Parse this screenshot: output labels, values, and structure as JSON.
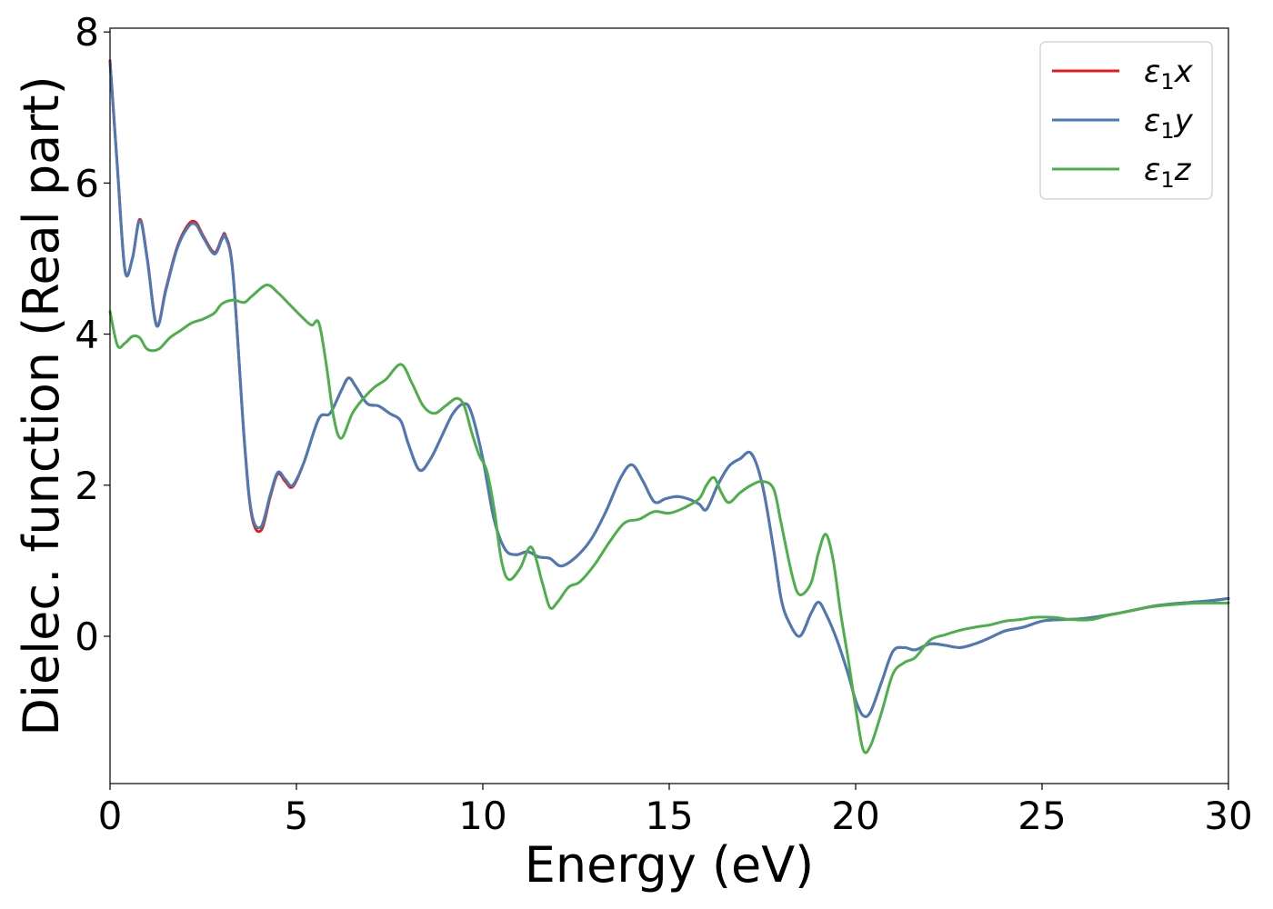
{
  "chart_data": {
    "type": "line",
    "xlabel": "Energy (eV)",
    "ylabel": "Dielec. function (Real part)",
    "xlim": [
      0,
      30
    ],
    "ylim": [
      -1.95,
      8.05
    ],
    "xticks": [
      0,
      5,
      10,
      15,
      20,
      25,
      30
    ],
    "xtick_labels": [
      "0",
      "5",
      "10",
      "15",
      "20",
      "25",
      "30"
    ],
    "yticks": [
      0,
      2,
      4,
      6,
      8
    ],
    "ytick_labels": [
      "0",
      "2",
      "4",
      "6",
      "8"
    ],
    "grid": false,
    "legend_position": "top-right",
    "series": [
      {
        "name": "ε1x",
        "legend_base": "ε",
        "legend_sub": "1",
        "legend_suffix": "x",
        "color": "#e41a1c",
        "x": [
          0,
          0.2,
          0.4,
          0.6,
          0.8,
          1.0,
          1.25,
          1.5,
          1.8,
          2.1,
          2.3,
          2.5,
          2.8,
          3.0,
          3.1,
          3.3,
          3.6,
          3.8,
          4.05,
          4.3,
          4.5,
          4.7,
          4.9,
          5.2,
          5.6,
          5.9,
          6.2,
          6.4,
          6.6,
          6.9,
          7.2,
          7.5,
          7.8,
          8.0,
          8.3,
          8.6,
          8.9,
          9.2,
          9.5,
          9.7,
          10.0,
          10.3,
          10.6,
          10.9,
          11.2,
          11.5,
          11.8,
          12.1,
          12.5,
          12.9,
          13.3,
          13.7,
          14.0,
          14.3,
          14.6,
          14.9,
          15.2,
          15.5,
          15.8,
          16.0,
          16.3,
          16.6,
          16.9,
          17.2,
          17.5,
          17.8,
          18.0,
          18.2,
          18.5,
          18.8,
          19.0,
          19.2,
          19.5,
          19.8,
          20.0,
          20.2,
          20.4,
          20.7,
          21.0,
          21.3,
          21.6,
          22.0,
          22.4,
          22.8,
          23.2,
          23.6,
          24.0,
          24.5,
          25.0,
          25.5,
          26.0,
          26.5,
          27.0,
          27.5,
          28.0,
          28.5,
          29.0,
          29.5,
          30.0
        ],
        "y": [
          7.62,
          6.2,
          4.85,
          5.0,
          5.52,
          5.0,
          4.12,
          4.6,
          5.15,
          5.45,
          5.48,
          5.3,
          5.08,
          5.27,
          5.3,
          4.8,
          2.6,
          1.6,
          1.4,
          1.85,
          2.15,
          2.05,
          1.98,
          2.3,
          2.88,
          2.95,
          3.25,
          3.42,
          3.3,
          3.08,
          3.05,
          2.95,
          2.85,
          2.55,
          2.2,
          2.35,
          2.65,
          2.95,
          3.08,
          2.95,
          2.35,
          1.55,
          1.15,
          1.08,
          1.12,
          1.05,
          1.03,
          0.93,
          1.05,
          1.28,
          1.65,
          2.1,
          2.27,
          2.05,
          1.78,
          1.82,
          1.85,
          1.82,
          1.75,
          1.68,
          2.0,
          2.25,
          2.35,
          2.42,
          2.0,
          1.15,
          0.5,
          0.2,
          0.0,
          0.3,
          0.45,
          0.3,
          -0.05,
          -0.5,
          -0.85,
          -1.05,
          -1.0,
          -0.6,
          -0.2,
          -0.15,
          -0.18,
          -0.1,
          -0.12,
          -0.15,
          -0.1,
          -0.02,
          0.07,
          0.12,
          0.2,
          0.22,
          0.23,
          0.26,
          0.3,
          0.35,
          0.4,
          0.43,
          0.45,
          0.47,
          0.5
        ]
      },
      {
        "name": "ε1y",
        "legend_base": "ε",
        "legend_sub": "1",
        "legend_suffix": "y",
        "color": "#4a7ab8",
        "x": [
          0,
          0.2,
          0.4,
          0.6,
          0.8,
          1.0,
          1.25,
          1.5,
          1.8,
          2.1,
          2.3,
          2.5,
          2.8,
          3.0,
          3.1,
          3.3,
          3.6,
          3.8,
          4.05,
          4.3,
          4.5,
          4.7,
          4.9,
          5.2,
          5.6,
          5.9,
          6.2,
          6.4,
          6.6,
          6.9,
          7.2,
          7.5,
          7.8,
          8.0,
          8.3,
          8.6,
          8.9,
          9.2,
          9.5,
          9.7,
          10.0,
          10.3,
          10.6,
          10.9,
          11.2,
          11.5,
          11.8,
          12.1,
          12.5,
          12.9,
          13.3,
          13.7,
          14.0,
          14.3,
          14.6,
          14.9,
          15.2,
          15.5,
          15.8,
          16.0,
          16.3,
          16.6,
          16.9,
          17.2,
          17.5,
          17.8,
          18.0,
          18.2,
          18.5,
          18.8,
          19.0,
          19.2,
          19.5,
          19.8,
          20.0,
          20.2,
          20.4,
          20.7,
          21.0,
          21.3,
          21.6,
          22.0,
          22.4,
          22.8,
          23.2,
          23.6,
          24.0,
          24.5,
          25.0,
          25.5,
          26.0,
          26.5,
          27.0,
          27.5,
          28.0,
          28.5,
          29.0,
          29.5,
          30.0
        ],
        "y": [
          7.6,
          6.18,
          4.84,
          5.0,
          5.5,
          4.98,
          4.11,
          4.58,
          5.13,
          5.42,
          5.45,
          5.28,
          5.06,
          5.25,
          5.28,
          4.78,
          2.62,
          1.63,
          1.45,
          1.88,
          2.17,
          2.08,
          2.0,
          2.3,
          2.88,
          2.95,
          3.25,
          3.42,
          3.3,
          3.08,
          3.05,
          2.95,
          2.85,
          2.55,
          2.2,
          2.35,
          2.65,
          2.95,
          3.08,
          2.95,
          2.35,
          1.55,
          1.15,
          1.08,
          1.12,
          1.05,
          1.03,
          0.93,
          1.05,
          1.28,
          1.65,
          2.1,
          2.27,
          2.05,
          1.78,
          1.82,
          1.85,
          1.82,
          1.75,
          1.68,
          2.0,
          2.25,
          2.35,
          2.42,
          2.0,
          1.15,
          0.5,
          0.2,
          0.0,
          0.3,
          0.45,
          0.3,
          -0.05,
          -0.5,
          -0.85,
          -1.05,
          -1.0,
          -0.6,
          -0.2,
          -0.15,
          -0.18,
          -0.1,
          -0.12,
          -0.15,
          -0.1,
          -0.02,
          0.07,
          0.12,
          0.2,
          0.22,
          0.23,
          0.26,
          0.3,
          0.35,
          0.4,
          0.43,
          0.45,
          0.47,
          0.5
        ]
      },
      {
        "name": "ε1z",
        "legend_base": "ε",
        "legend_sub": "1",
        "legend_suffix": "z",
        "color": "#4daf4a",
        "x": [
          0,
          0.2,
          0.4,
          0.6,
          0.8,
          1.0,
          1.3,
          1.6,
          1.9,
          2.2,
          2.5,
          2.8,
          3.0,
          3.3,
          3.6,
          3.8,
          4.2,
          4.5,
          4.8,
          5.1,
          5.4,
          5.6,
          5.8,
          6.0,
          6.2,
          6.5,
          6.8,
          7.1,
          7.4,
          7.8,
          8.1,
          8.4,
          8.7,
          9.0,
          9.3,
          9.5,
          9.7,
          9.9,
          10.1,
          10.3,
          10.5,
          10.7,
          11.0,
          11.3,
          11.6,
          11.8,
          12.0,
          12.3,
          12.6,
          13.0,
          13.4,
          13.8,
          14.2,
          14.6,
          15.0,
          15.4,
          15.8,
          16.0,
          16.2,
          16.4,
          16.6,
          16.9,
          17.2,
          17.5,
          17.8,
          18.0,
          18.3,
          18.5,
          18.8,
          19.0,
          19.2,
          19.4,
          19.6,
          19.8,
          20.0,
          20.2,
          20.4,
          20.7,
          21.0,
          21.3,
          21.6,
          22.0,
          22.4,
          22.8,
          23.2,
          23.6,
          24.0,
          24.4,
          24.8,
          25.3,
          25.8,
          26.3,
          26.8,
          27.3,
          27.8,
          28.3,
          28.8,
          29.3,
          30.0
        ],
        "y": [
          4.3,
          3.85,
          3.88,
          3.97,
          3.95,
          3.8,
          3.8,
          3.95,
          4.05,
          4.15,
          4.2,
          4.28,
          4.4,
          4.45,
          4.42,
          4.5,
          4.65,
          4.55,
          4.4,
          4.25,
          4.12,
          4.15,
          3.6,
          2.9,
          2.62,
          2.95,
          3.15,
          3.3,
          3.4,
          3.6,
          3.35,
          3.05,
          2.95,
          3.05,
          3.15,
          3.05,
          2.7,
          2.4,
          2.2,
          1.7,
          1.0,
          0.75,
          0.9,
          1.18,
          0.7,
          0.38,
          0.45,
          0.65,
          0.72,
          0.95,
          1.25,
          1.5,
          1.55,
          1.65,
          1.63,
          1.7,
          1.82,
          2.0,
          2.1,
          1.9,
          1.77,
          1.9,
          2.0,
          2.05,
          1.95,
          1.5,
          0.8,
          0.55,
          0.7,
          1.1,
          1.35,
          1.0,
          0.3,
          -0.3,
          -0.95,
          -1.5,
          -1.45,
          -1.0,
          -0.5,
          -0.35,
          -0.28,
          -0.05,
          0.02,
          0.08,
          0.12,
          0.15,
          0.2,
          0.22,
          0.25,
          0.25,
          0.22,
          0.22,
          0.28,
          0.33,
          0.38,
          0.41,
          0.43,
          0.44,
          0.44
        ]
      }
    ]
  }
}
